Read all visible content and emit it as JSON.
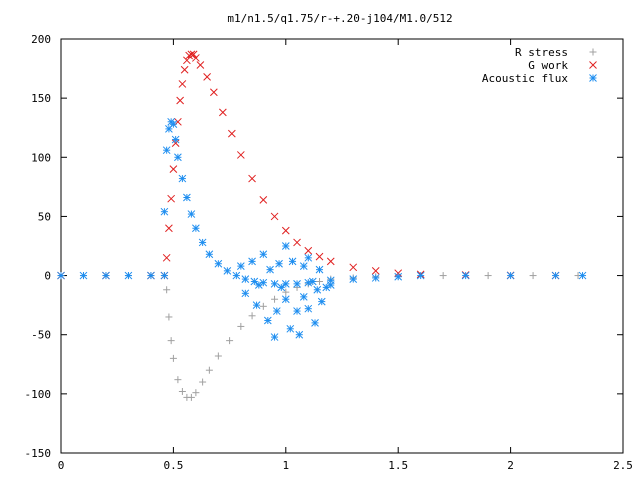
{
  "chart_data": {
    "type": "scatter",
    "title": "m1/n1.5/q1.75/r-+.20-j104/M1.0/512",
    "xlabel": "",
    "ylabel": "",
    "xlim": [
      0,
      2.5
    ],
    "ylim": [
      -150,
      200
    ],
    "x_ticks": [
      0,
      0.5,
      1,
      1.5,
      2,
      2.5
    ],
    "x_tick_labels": [
      "0",
      "0.5",
      "1",
      "1.5",
      "2",
      "2.5"
    ],
    "y_ticks": [
      -150,
      -100,
      -50,
      0,
      50,
      100,
      150,
      200
    ],
    "y_tick_labels": [
      "-150",
      "-100",
      "-50",
      "0",
      "50",
      "100",
      "150",
      "200"
    ],
    "grid": false,
    "legend_position": "top-right",
    "series": [
      {
        "name": "R stress",
        "marker": "plus",
        "color": "#a0a0a0",
        "points": [
          [
            0.0,
            0
          ],
          [
            0.1,
            0
          ],
          [
            0.2,
            0
          ],
          [
            0.3,
            0
          ],
          [
            0.4,
            0
          ],
          [
            0.46,
            0
          ],
          [
            0.47,
            -12
          ],
          [
            0.48,
            -35
          ],
          [
            0.49,
            -55
          ],
          [
            0.5,
            -70
          ],
          [
            0.52,
            -88
          ],
          [
            0.54,
            -98
          ],
          [
            0.56,
            -103
          ],
          [
            0.58,
            -103
          ],
          [
            0.6,
            -99
          ],
          [
            0.63,
            -90
          ],
          [
            0.66,
            -80
          ],
          [
            0.7,
            -68
          ],
          [
            0.75,
            -55
          ],
          [
            0.8,
            -43
          ],
          [
            0.85,
            -34
          ],
          [
            0.9,
            -26
          ],
          [
            0.95,
            -20
          ],
          [
            1.0,
            -14
          ],
          [
            1.05,
            -10
          ],
          [
            1.1,
            -7
          ],
          [
            1.15,
            -5
          ],
          [
            1.2,
            -3
          ],
          [
            1.3,
            -2
          ],
          [
            1.4,
            -1
          ],
          [
            1.5,
            -0.5
          ],
          [
            1.7,
            0
          ],
          [
            1.9,
            0
          ],
          [
            2.1,
            0
          ],
          [
            2.3,
            0
          ]
        ]
      },
      {
        "name": "G work",
        "marker": "cross",
        "color": "#e02020",
        "points": [
          [
            0.0,
            0
          ],
          [
            0.2,
            0
          ],
          [
            0.4,
            0
          ],
          [
            0.46,
            0
          ],
          [
            0.47,
            15
          ],
          [
            0.48,
            40
          ],
          [
            0.49,
            65
          ],
          [
            0.5,
            90
          ],
          [
            0.51,
            112
          ],
          [
            0.52,
            130
          ],
          [
            0.53,
            148
          ],
          [
            0.54,
            162
          ],
          [
            0.55,
            174
          ],
          [
            0.56,
            182
          ],
          [
            0.57,
            186
          ],
          [
            0.58,
            187
          ],
          [
            0.59,
            187
          ],
          [
            0.6,
            184
          ],
          [
            0.62,
            178
          ],
          [
            0.65,
            168
          ],
          [
            0.68,
            155
          ],
          [
            0.72,
            138
          ],
          [
            0.76,
            120
          ],
          [
            0.8,
            102
          ],
          [
            0.85,
            82
          ],
          [
            0.9,
            64
          ],
          [
            0.95,
            50
          ],
          [
            1.0,
            38
          ],
          [
            1.05,
            28
          ],
          [
            1.1,
            21
          ],
          [
            1.15,
            16
          ],
          [
            1.2,
            12
          ],
          [
            1.3,
            7
          ],
          [
            1.4,
            4
          ],
          [
            1.5,
            2
          ],
          [
            1.6,
            1
          ],
          [
            1.8,
            0.5
          ],
          [
            2.0,
            0.2
          ],
          [
            2.2,
            0
          ]
        ]
      },
      {
        "name": "Acoustic flux",
        "marker": "star",
        "color": "#1e8ef0",
        "points": [
          [
            0.0,
            0
          ],
          [
            0.1,
            0
          ],
          [
            0.2,
            0
          ],
          [
            0.3,
            0
          ],
          [
            0.4,
            0
          ],
          [
            0.46,
            0
          ],
          [
            0.46,
            54
          ],
          [
            0.47,
            106
          ],
          [
            0.48,
            124
          ],
          [
            0.49,
            130
          ],
          [
            0.5,
            128
          ],
          [
            0.51,
            115
          ],
          [
            0.52,
            100
          ],
          [
            0.54,
            82
          ],
          [
            0.56,
            66
          ],
          [
            0.58,
            52
          ],
          [
            0.6,
            40
          ],
          [
            0.63,
            28
          ],
          [
            0.66,
            18
          ],
          [
            0.7,
            10
          ],
          [
            0.74,
            4
          ],
          [
            0.78,
            0
          ],
          [
            0.82,
            -3
          ],
          [
            0.86,
            -5
          ],
          [
            0.9,
            -6
          ],
          [
            0.95,
            -7
          ],
          [
            1.0,
            -7
          ],
          [
            1.05,
            -7
          ],
          [
            1.1,
            -6
          ],
          [
            1.2,
            -4
          ],
          [
            1.3,
            -3
          ],
          [
            1.4,
            -2
          ],
          [
            1.5,
            -1
          ],
          [
            1.6,
            0
          ],
          [
            1.8,
            0
          ],
          [
            2.0,
            0
          ],
          [
            2.2,
            0
          ],
          [
            2.32,
            0
          ],
          [
            0.8,
            8
          ],
          [
            0.82,
            -15
          ],
          [
            0.85,
            12
          ],
          [
            0.87,
            -25
          ],
          [
            0.88,
            -8
          ],
          [
            0.9,
            18
          ],
          [
            0.92,
            -38
          ],
          [
            0.93,
            5
          ],
          [
            0.95,
            -52
          ],
          [
            0.96,
            -30
          ],
          [
            0.97,
            10
          ],
          [
            0.98,
            -10
          ],
          [
            1.0,
            -20
          ],
          [
            1.0,
            25
          ],
          [
            1.02,
            -45
          ],
          [
            1.03,
            12
          ],
          [
            1.05,
            -30
          ],
          [
            1.06,
            -50
          ],
          [
            1.08,
            8
          ],
          [
            1.08,
            -18
          ],
          [
            1.1,
            -28
          ],
          [
            1.1,
            15
          ],
          [
            1.12,
            -5
          ],
          [
            1.13,
            -40
          ],
          [
            1.14,
            -12
          ],
          [
            1.15,
            5
          ],
          [
            1.16,
            -22
          ],
          [
            1.18,
            -10
          ],
          [
            1.2,
            -8
          ]
        ]
      }
    ]
  }
}
